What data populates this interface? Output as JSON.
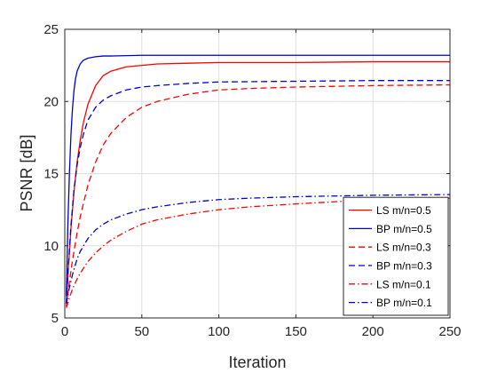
{
  "chart_data": {
    "type": "line",
    "title": "",
    "xlabel": "Iteration",
    "ylabel": "PSNR [dB]",
    "xlim": [
      0,
      250
    ],
    "ylim": [
      5,
      25
    ],
    "xticks": [
      0,
      50,
      100,
      150,
      200,
      250
    ],
    "yticks": [
      5,
      10,
      15,
      20,
      25
    ],
    "grid": true,
    "legend_position": "bottom-right",
    "series": [
      {
        "name": "LS m/n=0.5",
        "color": "#ff0000",
        "dash": "solid",
        "x": [
          1,
          2,
          4,
          6,
          8,
          10,
          12,
          15,
          20,
          25,
          30,
          40,
          50,
          60,
          80,
          100,
          150,
          200,
          250
        ],
        "y": [
          6.0,
          7.9,
          11.2,
          13.8,
          15.8,
          17.3,
          18.5,
          19.8,
          21.1,
          21.8,
          22.1,
          22.4,
          22.5,
          22.6,
          22.65,
          22.7,
          22.7,
          22.75,
          22.75
        ]
      },
      {
        "name": "BP m/n=0.5",
        "color": "#0000cc",
        "dash": "solid",
        "x": [
          1,
          2,
          3,
          4,
          5,
          6,
          7,
          8,
          10,
          12,
          15,
          20,
          25,
          30,
          50,
          100,
          150,
          200,
          250
        ],
        "y": [
          6.5,
          11.5,
          15.0,
          17.7,
          19.5,
          20.8,
          21.6,
          22.1,
          22.6,
          22.85,
          23.0,
          23.1,
          23.15,
          23.15,
          23.2,
          23.2,
          23.2,
          23.2,
          23.2
        ]
      },
      {
        "name": "LS m/n=0.3",
        "color": "#ff0000",
        "dash": "dashed",
        "x": [
          1,
          3,
          5,
          8,
          10,
          15,
          20,
          25,
          30,
          40,
          50,
          60,
          80,
          100,
          120,
          150,
          200,
          250
        ],
        "y": [
          5.8,
          7.5,
          9.0,
          10.9,
          12.0,
          14.2,
          15.8,
          17.0,
          17.8,
          18.9,
          19.6,
          20.0,
          20.5,
          20.8,
          20.9,
          21.0,
          21.1,
          21.15
        ]
      },
      {
        "name": "BP m/n=0.3",
        "color": "#0000cc",
        "dash": "dashed",
        "x": [
          1,
          2,
          4,
          6,
          8,
          10,
          12,
          15,
          20,
          25,
          30,
          40,
          50,
          60,
          80,
          100,
          150,
          200,
          250
        ],
        "y": [
          6.0,
          8.0,
          11.4,
          13.9,
          15.6,
          16.8,
          17.7,
          18.7,
          19.6,
          20.1,
          20.4,
          20.8,
          21.0,
          21.1,
          21.25,
          21.35,
          21.4,
          21.45,
          21.45
        ]
      },
      {
        "name": "LS m/n=0.1",
        "color": "#ff0000",
        "dash": "dashdot",
        "x": [
          1,
          3,
          5,
          8,
          10,
          15,
          20,
          25,
          30,
          40,
          50,
          60,
          80,
          100,
          120,
          150,
          200,
          250
        ],
        "y": [
          5.7,
          6.4,
          7.0,
          7.7,
          8.1,
          8.9,
          9.5,
          10.0,
          10.4,
          11.0,
          11.5,
          11.8,
          12.2,
          12.5,
          12.7,
          12.9,
          13.2,
          13.3
        ]
      },
      {
        "name": "BP m/n=0.1",
        "color": "#0000cc",
        "dash": "dashdot",
        "x": [
          1,
          3,
          5,
          8,
          10,
          15,
          20,
          25,
          30,
          40,
          50,
          60,
          80,
          100,
          120,
          150,
          200,
          250
        ],
        "y": [
          6.0,
          7.1,
          8.0,
          9.1,
          9.6,
          10.5,
          11.1,
          11.5,
          11.8,
          12.2,
          12.5,
          12.7,
          13.0,
          13.2,
          13.3,
          13.4,
          13.5,
          13.55
        ]
      }
    ]
  }
}
